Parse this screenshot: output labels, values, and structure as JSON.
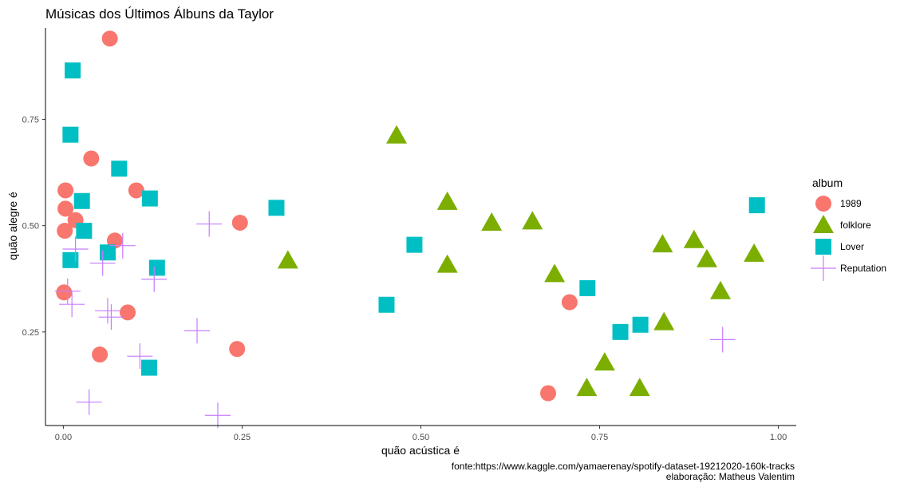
{
  "chart_data": {
    "type": "scatter",
    "title": "Músicas dos Últimos Álbuns da Taylor",
    "xlabel": "quão acústica é",
    "ylabel": "quão alegre é",
    "xlim": [
      -0.025,
      1.025
    ],
    "ylim": [
      0.03,
      0.965
    ],
    "xticks": [
      0.0,
      0.25,
      0.5,
      0.75,
      1.0
    ],
    "xtick_labels": [
      "0.00",
      "0.25",
      "0.50",
      "0.75",
      "1.00"
    ],
    "yticks": [
      0.25,
      0.5,
      0.75
    ],
    "ytick_labels": [
      "0.25",
      "0.50",
      "0.75"
    ],
    "grid": false,
    "legend": {
      "title": "album",
      "position": "right"
    },
    "caption": [
      "fonte:https://www.kaggle.com/yamaerenay/spotify-dataset-19212020-160k-tracks",
      "elaboração: Matheus Valentim"
    ],
    "series": [
      {
        "name": "1989",
        "shape": "circle",
        "color": "#F8766D",
        "points": [
          [
            0.065,
            0.94
          ],
          [
            0.039,
            0.658
          ],
          [
            0.003,
            0.583
          ],
          [
            0.102,
            0.583
          ],
          [
            0.003,
            0.54
          ],
          [
            0.017,
            0.513
          ],
          [
            0.247,
            0.507
          ],
          [
            0.002,
            0.488
          ],
          [
            0.072,
            0.465
          ],
          [
            0.001,
            0.343
          ],
          [
            0.09,
            0.296
          ],
          [
            0.708,
            0.32
          ],
          [
            0.051,
            0.197
          ],
          [
            0.243,
            0.21
          ],
          [
            0.678,
            0.106
          ]
        ]
      },
      {
        "name": "folklore",
        "shape": "triangle",
        "color": "#7CAE00",
        "points": [
          [
            0.466,
            0.712
          ],
          [
            0.537,
            0.556
          ],
          [
            0.599,
            0.507
          ],
          [
            0.656,
            0.51
          ],
          [
            0.314,
            0.418
          ],
          [
            0.537,
            0.408
          ],
          [
            0.687,
            0.386
          ],
          [
            0.838,
            0.456
          ],
          [
            0.882,
            0.466
          ],
          [
            0.9,
            0.421
          ],
          [
            0.966,
            0.434
          ],
          [
            0.919,
            0.346
          ],
          [
            0.84,
            0.273
          ],
          [
            0.757,
            0.178
          ],
          [
            0.732,
            0.118
          ],
          [
            0.806,
            0.118
          ]
        ]
      },
      {
        "name": "Lover",
        "shape": "square",
        "color": "#00BFC4",
        "points": [
          [
            0.013,
            0.865
          ],
          [
            0.01,
            0.714
          ],
          [
            0.078,
            0.634
          ],
          [
            0.026,
            0.558
          ],
          [
            0.121,
            0.564
          ],
          [
            0.298,
            0.542
          ],
          [
            0.029,
            0.488
          ],
          [
            0.491,
            0.455
          ],
          [
            0.062,
            0.437
          ],
          [
            0.01,
            0.419
          ],
          [
            0.131,
            0.401
          ],
          [
            0.452,
            0.314
          ],
          [
            0.733,
            0.353
          ],
          [
            0.779,
            0.25
          ],
          [
            0.807,
            0.267
          ],
          [
            0.12,
            0.166
          ],
          [
            0.97,
            0.548
          ]
        ]
      },
      {
        "name": "Reputation",
        "shape": "cross",
        "color": "#C77CFF",
        "points": [
          [
            0.204,
            0.504
          ],
          [
            0.017,
            0.445
          ],
          [
            0.055,
            0.412
          ],
          [
            0.083,
            0.453
          ],
          [
            0.127,
            0.374
          ],
          [
            0.006,
            0.346
          ],
          [
            0.012,
            0.315
          ],
          [
            0.062,
            0.3
          ],
          [
            0.067,
            0.285
          ],
          [
            0.187,
            0.253
          ],
          [
            0.107,
            0.193
          ],
          [
            0.922,
            0.232
          ],
          [
            0.036,
            0.085
          ],
          [
            0.216,
            0.054
          ]
        ]
      }
    ]
  }
}
